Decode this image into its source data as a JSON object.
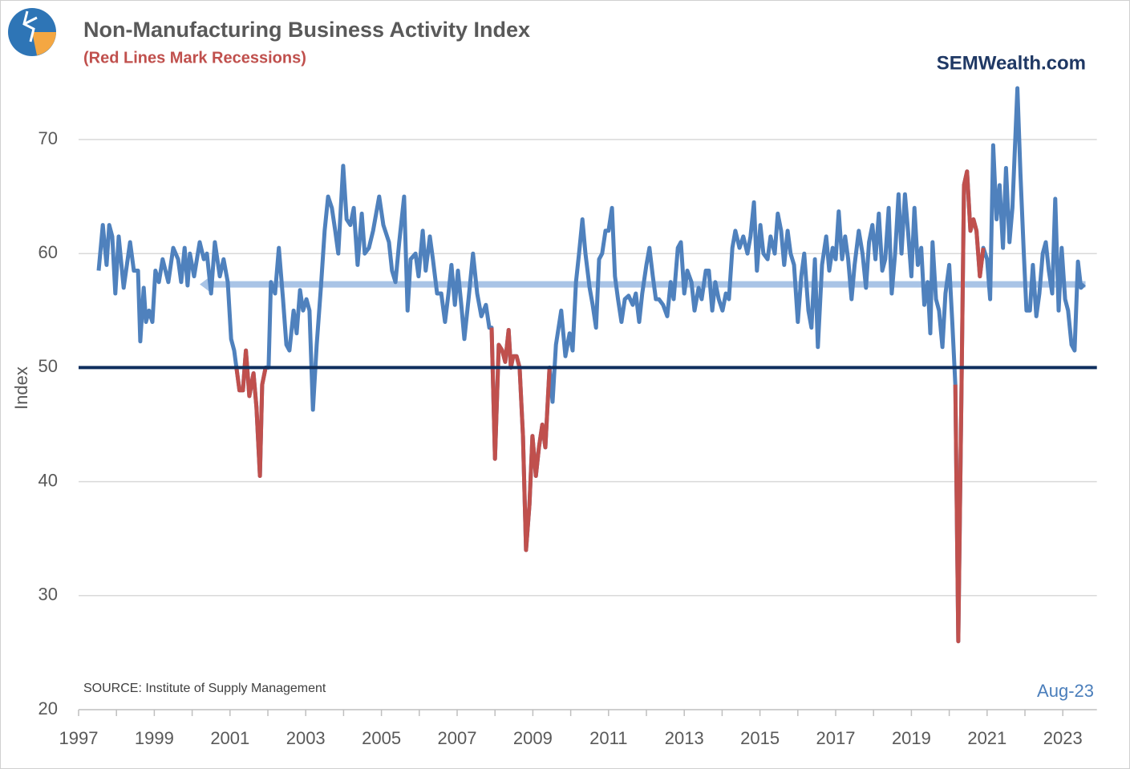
{
  "chart_data": {
    "type": "line",
    "title": "Non-Manufacturing Business Activity Index",
    "subtitle": "(Red Lines Mark Recessions)",
    "brand": "SEMWealth.com",
    "source": "SOURCE:  Institute of Supply Management",
    "date_label": "Aug-23",
    "ylabel": "Index",
    "xlim": [
      1997,
      2023.9
    ],
    "ylim": [
      20,
      75
    ],
    "xticks": [
      1997,
      1999,
      2001,
      2003,
      2005,
      2007,
      2009,
      2011,
      2013,
      2015,
      2017,
      2019,
      2021,
      2023
    ],
    "xminorticks": [
      1998,
      2000,
      2002,
      2004,
      2006,
      2008,
      2010,
      2012,
      2014,
      2016,
      2018,
      2020,
      2022
    ],
    "yticks": [
      20,
      30,
      40,
      50,
      60,
      70
    ],
    "grid": true,
    "hline": {
      "value": 50,
      "color": "#0f2f5e"
    },
    "arrow": {
      "value": 57.3,
      "x": [
        2000.2,
        2023.6
      ],
      "color": "#a9c4e6"
    },
    "series": [
      {
        "color": "#4f81bd",
        "x": [
          1997.53,
          1997.64,
          1997.74,
          1997.81,
          1997.89,
          1997.97,
          1998.06,
          1998.19,
          1998.36,
          1998.46,
          1998.57,
          1998.63,
          1998.72,
          1998.78,
          1998.86,
          1998.95,
          1999.03,
          1999.12,
          1999.22,
          1999.37,
          1999.5,
          1999.63,
          1999.71,
          1999.8,
          1999.88,
          1999.94,
          2000.05,
          2000.2,
          2000.31,
          2000.39,
          2000.5,
          2000.6,
          2000.73,
          2000.83,
          2000.94,
          2001.03,
          2001.11,
          2001.17,
          2001.25,
          2001.34,
          2001.42,
          2001.51,
          2001.62,
          2001.7,
          2001.79,
          2001.85,
          2001.94,
          2002.02,
          2002.08,
          2002.19,
          2002.29,
          2002.4,
          2002.49,
          2002.57,
          2002.68,
          2002.76,
          2002.85,
          2002.93,
          2003.02,
          2003.1,
          2003.19,
          2003.29,
          2003.4,
          2003.5,
          2003.59,
          2003.69,
          2003.78,
          2003.86,
          2003.99,
          2004.08,
          2004.18,
          2004.27,
          2004.37,
          2004.48,
          2004.56,
          2004.67,
          2004.78,
          2004.94,
          2005.05,
          2005.2,
          2005.28,
          2005.37,
          2005.47,
          2005.6,
          2005.69,
          2005.77,
          2005.9,
          2005.98,
          2006.09,
          2006.17,
          2006.28,
          2006.36,
          2006.47,
          2006.58,
          2006.68,
          2006.77,
          2006.85,
          2006.94,
          2007.02,
          2007.11,
          2007.19,
          2007.3,
          2007.42,
          2007.53,
          2007.64,
          2007.76,
          2007.85,
          2007.91,
          2008.0,
          2008.1,
          2008.19,
          2008.27,
          2008.36,
          2008.42,
          2008.48,
          2008.57,
          2008.65,
          2008.74,
          2008.82,
          2008.91,
          2008.99,
          2009.08,
          2009.16,
          2009.25,
          2009.33,
          2009.44,
          2009.52,
          2009.61,
          2009.75,
          2009.86,
          2009.97,
          2010.05,
          2010.14,
          2010.22,
          2010.31,
          2010.39,
          2010.5,
          2010.58,
          2010.67,
          2010.75,
          2010.83,
          2010.92,
          2011.0,
          2011.09,
          2011.17,
          2011.25,
          2011.34,
          2011.43,
          2011.53,
          2011.64,
          2011.72,
          2011.81,
          2011.89,
          2012.0,
          2012.08,
          2012.17,
          2012.25,
          2012.33,
          2012.44,
          2012.55,
          2012.64,
          2012.72,
          2012.83,
          2012.91,
          2013.0,
          2013.08,
          2013.19,
          2013.27,
          2013.38,
          2013.46,
          2013.57,
          2013.65,
          2013.74,
          2013.82,
          2013.91,
          2014.01,
          2014.1,
          2014.18,
          2014.27,
          2014.35,
          2014.46,
          2014.56,
          2014.67,
          2014.75,
          2014.84,
          2014.92,
          2015.01,
          2015.09,
          2015.2,
          2015.28,
          2015.39,
          2015.47,
          2015.56,
          2015.64,
          2015.73,
          2015.81,
          2015.9,
          2016.0,
          2016.09,
          2016.17,
          2016.28,
          2016.36,
          2016.45,
          2016.53,
          2016.64,
          2016.75,
          2016.83,
          2016.92,
          2017.0,
          2017.08,
          2017.17,
          2017.25,
          2017.33,
          2017.42,
          2017.5,
          2017.61,
          2017.71,
          2017.8,
          2017.88,
          2017.97,
          2018.05,
          2018.14,
          2018.23,
          2018.31,
          2018.4,
          2018.48,
          2018.57,
          2018.66,
          2018.74,
          2018.83,
          2018.91,
          2019.0,
          2019.08,
          2019.17,
          2019.26,
          2019.34,
          2019.43,
          2019.5,
          2019.56,
          2019.65,
          2019.73,
          2019.82,
          2019.9,
          2020.0,
          2020.08,
          2020.16,
          2020.24,
          2020.32,
          2020.39,
          2020.47,
          2020.56,
          2020.64,
          2020.72,
          2020.81,
          2020.9,
          2021.0,
          2021.08,
          2021.16,
          2021.25,
          2021.33,
          2021.42,
          2021.5,
          2021.59,
          2021.67,
          2021.8,
          2021.88,
          2021.97,
          2022.04,
          2022.13,
          2022.21,
          2022.3,
          2022.38,
          2022.47,
          2022.55,
          2022.63,
          2022.72,
          2022.8,
          2022.89,
          2022.97,
          2023.06,
          2023.14,
          2023.23,
          2023.31,
          2023.4,
          2023.48,
          2023.57
        ],
        "values": [
          58.5,
          62.5,
          59,
          62.5,
          61.5,
          56.5,
          61.5,
          57,
          61,
          58.5,
          58.5,
          52.3,
          57,
          54,
          55,
          54,
          58.5,
          57.5,
          59.5,
          57.5,
          60.5,
          59.5,
          57.5,
          60.5,
          57.2,
          60,
          58,
          61,
          59.5,
          60,
          56.5,
          61,
          58,
          59.5,
          57.5,
          52.5,
          51.5,
          50,
          48,
          48,
          51.5,
          47.5,
          49.5,
          46.5,
          40.5,
          48.5,
          50,
          50,
          57.5,
          56.5,
          60.5,
          56,
          52,
          51.5,
          55,
          53,
          56.8,
          55,
          56,
          55,
          46.3,
          52,
          57,
          62,
          65,
          64,
          62,
          60,
          67.7,
          63,
          62.5,
          64,
          59,
          63.5,
          60,
          60.5,
          62,
          65,
          62.5,
          61,
          58.5,
          57.5,
          61,
          65,
          55,
          59.5,
          60,
          58,
          62,
          58.5,
          61.5,
          59.5,
          56.5,
          56.5,
          54,
          56.5,
          59,
          55.5,
          58.5,
          55.5,
          52.5,
          56,
          60,
          56.5,
          54.5,
          55.5,
          53.5,
          53.5,
          42,
          52,
          51.5,
          50.5,
          53.3,
          50,
          51,
          51,
          50,
          44,
          34,
          38,
          44,
          40.5,
          43,
          45,
          43,
          50,
          47,
          52,
          55,
          51,
          53,
          51.5,
          57.5,
          60,
          63,
          60,
          57,
          55.5,
          53.5,
          59.5,
          60,
          62,
          62,
          64,
          58,
          56,
          54,
          56,
          56.3,
          55.5,
          56.5,
          54,
          56.5,
          59,
          60.5,
          58,
          56,
          56,
          55.5,
          54.5,
          57.5,
          56,
          60.5,
          61,
          56.5,
          58.5,
          57.5,
          55,
          57,
          56,
          58.5,
          58.5,
          55,
          57.5,
          56,
          55,
          56.5,
          56,
          60.5,
          62,
          60.5,
          61.5,
          60,
          61.5,
          64.5,
          58.5,
          62.5,
          60,
          59.5,
          61.5,
          60,
          63.5,
          62,
          59,
          62,
          60,
          59,
          54,
          58,
          60,
          55,
          53.5,
          59.5,
          51.8,
          59,
          61.5,
          58.5,
          60.5,
          59.5,
          63.7,
          59.5,
          61.5,
          59.5,
          56,
          59,
          62,
          60,
          57,
          61,
          62.5,
          59.5,
          63.5,
          58.5,
          59.5,
          64,
          56.5,
          60,
          65.2,
          60,
          65.2,
          62,
          58,
          64,
          59,
          60.5,
          55.5,
          57.5,
          53,
          61,
          56,
          55,
          51.8,
          56.5,
          59,
          54,
          48.5,
          26,
          47,
          66,
          67.2,
          62,
          63,
          62,
          58,
          60.5,
          59.5,
          56,
          69.5,
          63,
          66,
          60.5,
          67.5,
          61,
          64,
          74.5,
          67,
          60,
          55,
          55,
          59,
          54.5,
          56.5,
          60,
          61,
          58.5,
          56.5,
          64.8,
          55,
          60.5,
          56,
          55,
          52,
          51.5,
          59.3,
          57,
          57.3
        ]
      },
      {
        "color": "#c0504d",
        "x": [
          2001.17,
          2001.25,
          2001.34,
          2001.42,
          2001.51,
          2001.62,
          2001.7,
          2001.79,
          2001.85,
          2001.94
        ],
        "values": [
          50,
          48,
          48,
          51.5,
          47.5,
          49.5,
          46.5,
          40.5,
          48.5,
          50
        ]
      },
      {
        "color": "#c0504d",
        "x": [
          2007.91,
          2008.0,
          2008.1,
          2008.19,
          2008.27,
          2008.36,
          2008.42,
          2008.48,
          2008.57,
          2008.65,
          2008.74,
          2008.82,
          2008.91,
          2008.99,
          2009.08,
          2009.16,
          2009.25,
          2009.33,
          2009.44
        ],
        "values": [
          53.5,
          42,
          52,
          51.5,
          50.5,
          53.3,
          50,
          51,
          51,
          50,
          44,
          34,
          38,
          44,
          40.5,
          43,
          45,
          43,
          50
        ]
      },
      {
        "color": "#c0504d",
        "x": [
          2020.16,
          2020.24,
          2020.32,
          2020.39,
          2020.47,
          2020.56,
          2020.64,
          2020.72,
          2020.81,
          2020.9
        ],
        "values": [
          48.5,
          26,
          47,
          66,
          67.2,
          62,
          63,
          62,
          58,
          60.5
        ]
      }
    ]
  }
}
